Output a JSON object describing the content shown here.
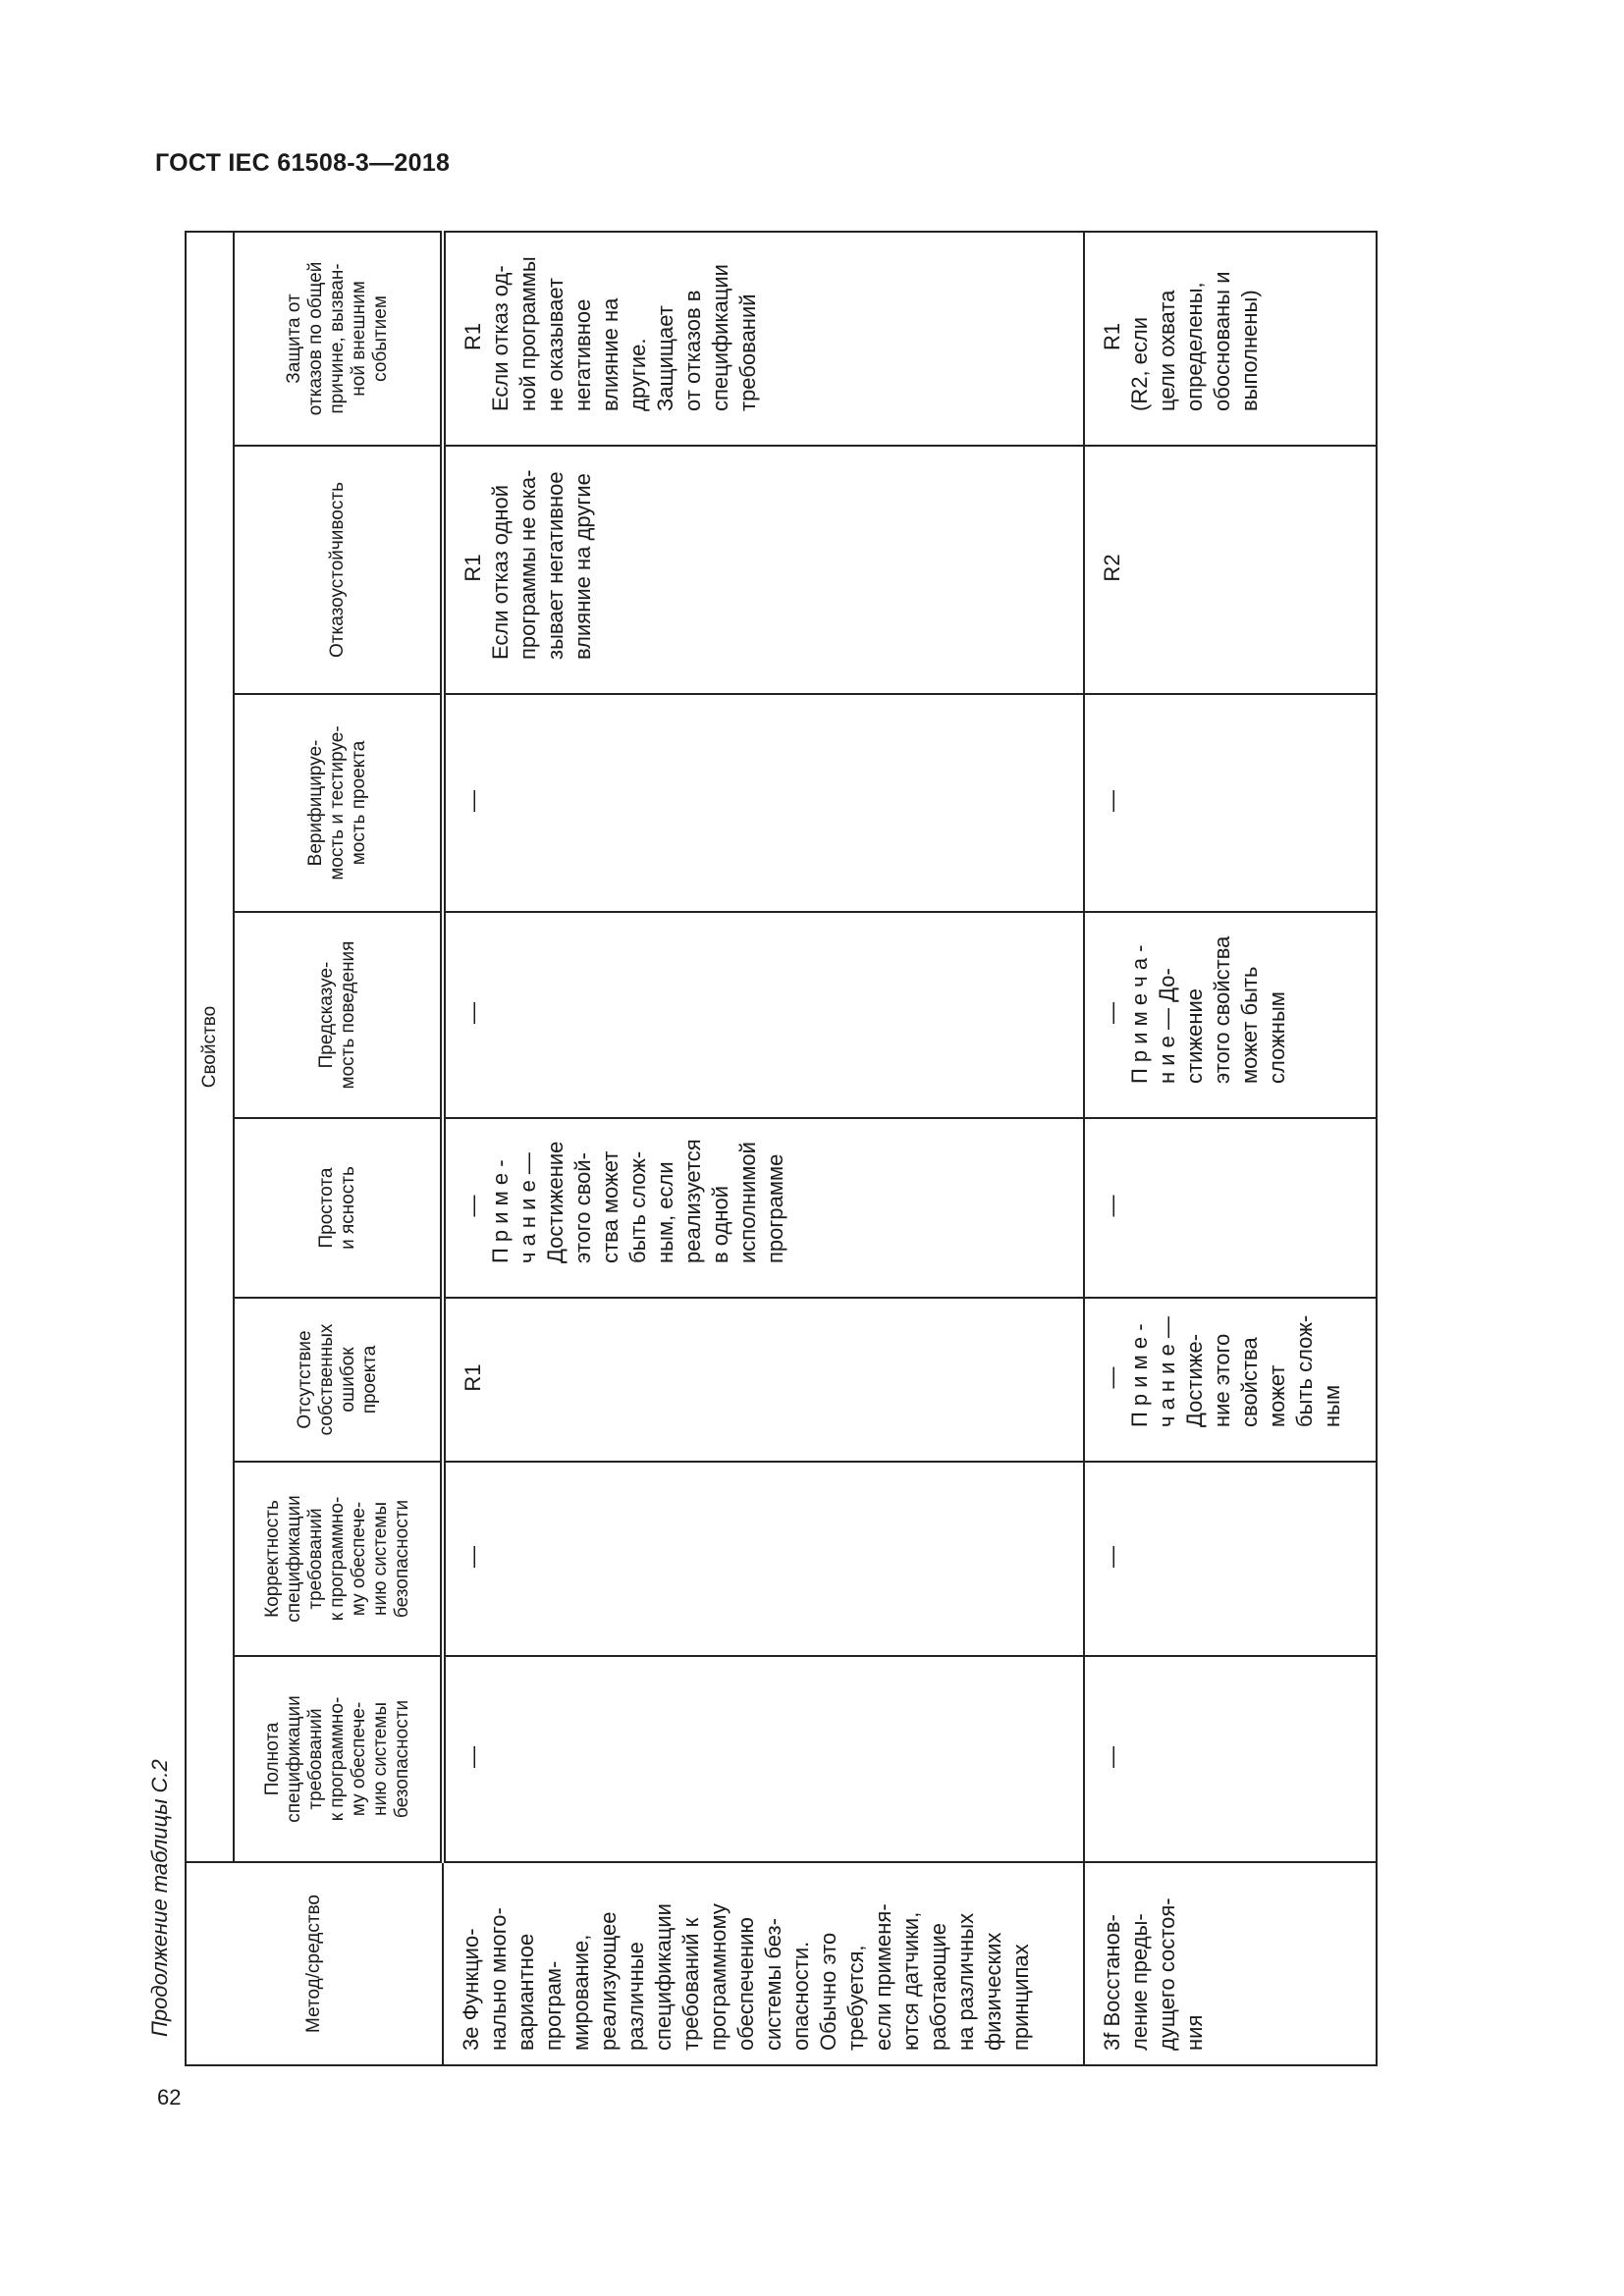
{
  "document": {
    "header": "ГОСТ IEC 61508-3—2018",
    "page_number": "62",
    "caption": "Продолжение таблицы С.2"
  },
  "table": {
    "method_header": "Метод/средство",
    "group_header": "Свойство",
    "columns": [
      "Полнота\nспецификации\nтребований\nк программно-\nму обеспече-\nнию системы\nбезопасности",
      "Корректность\nспецификации\nтребований\nк программно-\nму обеспече-\nнию системы\nбезопасности",
      "Отсутствие\nсобственных\nошибок\nпроекта",
      "Простота\nи ясность",
      "Предсказуе-\nмость поведения",
      "Верифицируе-\nмость и тестируе-\nмость проекта",
      "Отказоустойчивость",
      "Защита от\nотказов по общей\nпричине, вызван-\nной внешним\nсобытием"
    ],
    "rows": [
      {
        "method": "3e Функцио-\nнально много-\nвариантное\nпрограм-\nмирование,\nреализующее\nразличные\nспецификации\nтребований к\nпрограммному\nобеспечению\nсистемы без-\nопасности.\nОбычно это\nтребуется,\nесли применя-\nются датчики,\nработающие\nна различных\nфизических\nпринципах",
        "cells": [
          {
            "value": "—",
            "note": ""
          },
          {
            "value": "—",
            "note": ""
          },
          {
            "value": "R1",
            "note": ""
          },
          {
            "value": "—",
            "note": "П р и м е -\nч а н и е —\nДостижение\nэтого свой-\nства может\nбыть слож-\nным, если\nреализуется\nв одной\nисполнимой\nпрограмме"
          },
          {
            "value": "—",
            "note": ""
          },
          {
            "value": "—",
            "note": ""
          },
          {
            "value": "R1",
            "note": "Если отказ одной\nпрограммы не ока-\nзывает негативное\nвлияние на другие"
          },
          {
            "value": "R1",
            "note": "Если отказ од-\nной программы\nне оказывает\nнегативное\nвлияние на\nдругие.\nЗащищает\nот отказов в\nспецификации\nтребований"
          }
        ]
      },
      {
        "method": "3f Восстанов-\nление преды-\nдущего состоя-\nния",
        "cells": [
          {
            "value": "—",
            "note": ""
          },
          {
            "value": "—",
            "note": ""
          },
          {
            "value": "—",
            "note": "П р и м е -\nч а н и е —\nДостиже-\nние этого\nсвойства\nможет\nбыть слож-\nным"
          },
          {
            "value": "—",
            "note": ""
          },
          {
            "value": "—",
            "note": "П р и м е ч а -\nн и е — До-\nстижение\nэтого свойства\nможет быть\nсложным"
          },
          {
            "value": "—",
            "note": ""
          },
          {
            "value": "R2",
            "note": ""
          },
          {
            "value": "R1",
            "note": "(R2, если\nцели охвата\nопределены,\nобоснованы и\nвыполнены)"
          }
        ]
      }
    ]
  }
}
